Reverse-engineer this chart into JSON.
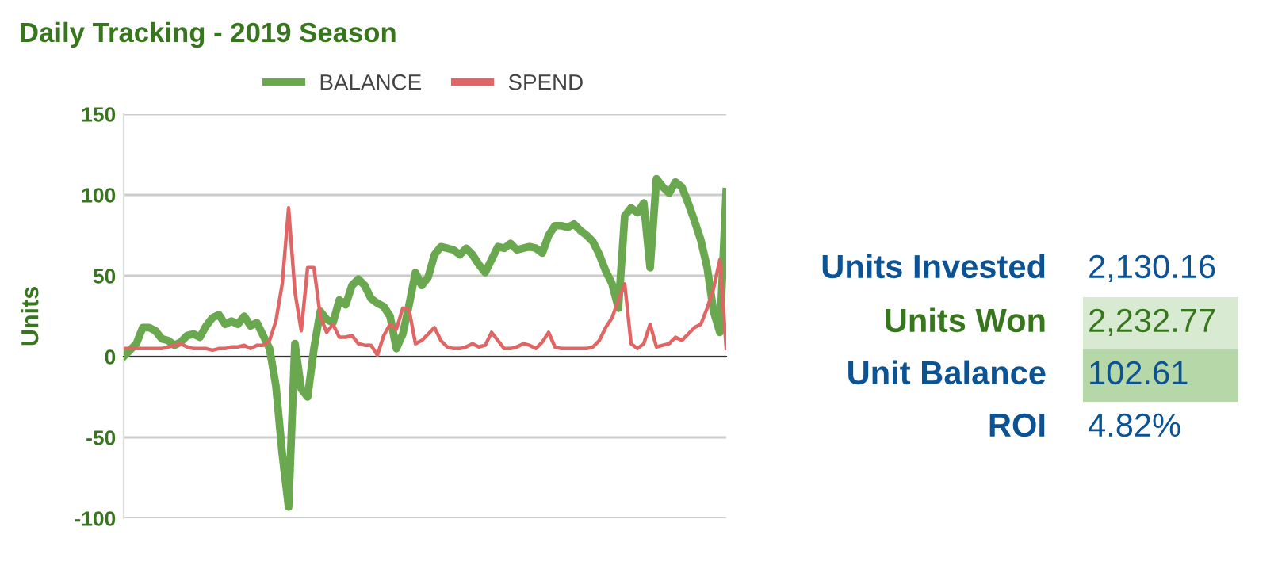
{
  "chart_data": [
    {
      "type": "line",
      "title": "Daily Tracking - 2019 Season",
      "ylabel": "Units",
      "categories": [
        null,
        null,
        null,
        null,
        null,
        null,
        null,
        null,
        null,
        null,
        null,
        null,
        null,
        null,
        null,
        null,
        null,
        null,
        null,
        null,
        null,
        null,
        null,
        null,
        null,
        null,
        null,
        null,
        null,
        null,
        null,
        null,
        null,
        null,
        null,
        null,
        null,
        null,
        null,
        null,
        null,
        null,
        null,
        null,
        null,
        null,
        null,
        null,
        null,
        null,
        null,
        null,
        null,
        null,
        null,
        null,
        null,
        null,
        null,
        null,
        null,
        null,
        null,
        null,
        null,
        null,
        null,
        null,
        null,
        null,
        null,
        null,
        null,
        null,
        null,
        null,
        null,
        null,
        null,
        null,
        null,
        null,
        null,
        null,
        null,
        null,
        null,
        null,
        null,
        null,
        null,
        null,
        null,
        null,
        null,
        null
      ],
      "series": [
        {
          "name": "BALANCE",
          "color": "#6aa84f",
          "values": [
            0,
            4,
            8,
            18,
            18,
            16,
            11,
            10,
            7,
            9,
            13,
            14,
            12,
            19,
            24,
            26,
            20,
            22,
            20,
            25,
            19,
            21,
            13,
            5,
            -18,
            -60,
            -93,
            8,
            -20,
            -25,
            5,
            28,
            23,
            21,
            35,
            32,
            44,
            48,
            44,
            36,
            33,
            31,
            25,
            5,
            14,
            32,
            52,
            44,
            49,
            63,
            68,
            67,
            66,
            63,
            67,
            63,
            57,
            52,
            60,
            68,
            67,
            70,
            66,
            67,
            68,
            67,
            64,
            75,
            81,
            81,
            80,
            82,
            78,
            75,
            71,
            63,
            53,
            45,
            30,
            87,
            92,
            89,
            95,
            55,
            110,
            105,
            101,
            108,
            105,
            95,
            84,
            72,
            55,
            28,
            15,
            102
          ]
        },
        {
          "name": "SPEND",
          "color": "#e06666",
          "values": [
            5,
            5,
            5,
            5,
            5,
            5,
            5,
            6,
            7,
            8,
            6,
            5,
            5,
            5,
            4,
            5,
            5,
            6,
            6,
            7,
            5,
            7,
            7,
            10,
            22,
            45,
            92,
            40,
            16,
            55,
            55,
            25,
            15,
            20,
            12,
            12,
            13,
            8,
            7,
            7,
            1,
            13,
            20,
            17,
            30,
            29,
            8,
            10,
            14,
            18,
            10,
            6,
            5,
            5,
            6,
            8,
            6,
            7,
            15,
            10,
            5,
            5,
            6,
            8,
            7,
            5,
            9,
            15,
            6,
            5,
            5,
            5,
            5,
            5,
            6,
            10,
            18,
            24,
            35,
            45,
            8,
            5,
            8,
            20,
            6,
            7,
            8,
            12,
            10,
            14,
            18,
            20,
            30,
            42,
            60,
            5
          ]
        }
      ],
      "ylim": [
        -100,
        150
      ],
      "yticks": [
        -100,
        -50,
        0,
        50,
        100,
        150
      ],
      "grid": "y",
      "legend": "top"
    },
    {
      "type": "other",
      "annotations": [
        "Units Invested",
        "2,130.16",
        "Units Won",
        "2,232.77",
        "Unit Balance",
        "102.61",
        "ROI",
        "4.82%"
      ]
    }
  ]
}
